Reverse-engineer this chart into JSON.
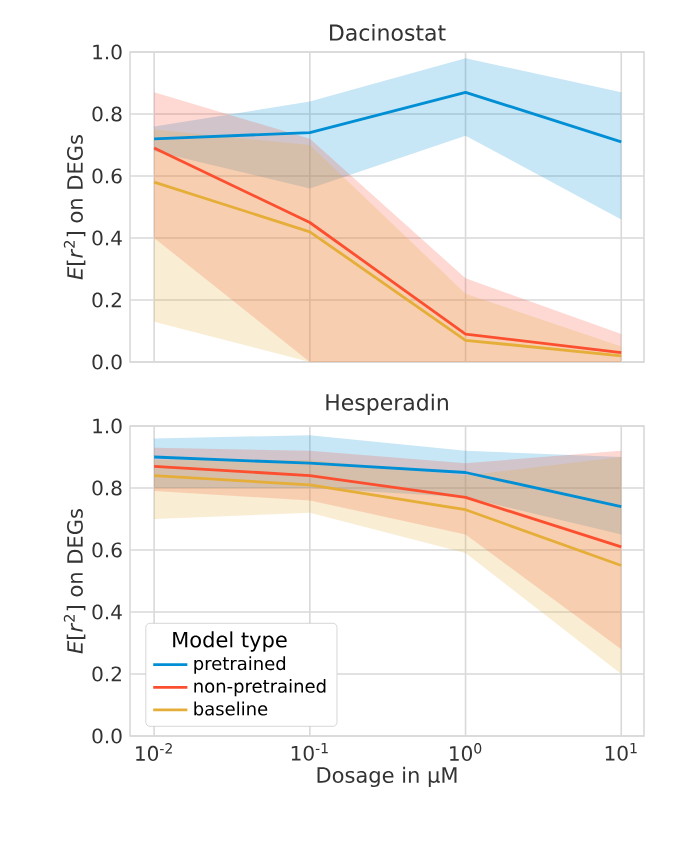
{
  "chart_data": [
    {
      "type": "line",
      "title": "Dacinostat",
      "ylabel": "*E*[*r*$^{2}$] on DEGs",
      "log": "x",
      "grid": true,
      "tick_labels": "y",
      "x": [
        0.01,
        0.1,
        1,
        10
      ],
      "xlim": [
        0.007,
        14
      ],
      "ylim": [
        0,
        1
      ],
      "xticks": [
        {
          "value": 0.01,
          "label": null
        },
        {
          "value": 0.1,
          "label": null
        },
        {
          "value": 1,
          "label": null
        },
        {
          "value": 10,
          "label": null
        }
      ],
      "yticks": [
        {
          "value": 0,
          "label": "0.0"
        },
        {
          "value": 0.2,
          "label": "0.2"
        },
        {
          "value": 0.4,
          "label": "0.4"
        },
        {
          "value": 0.6,
          "label": "0.6"
        },
        {
          "value": 0.8,
          "label": "0.8"
        },
        {
          "value": 1,
          "label": "1.0"
        }
      ],
      "series": [
        {
          "color": "#008fd5",
          "values": [
            0.72,
            0.74,
            0.87,
            0.71
          ],
          "lower": [
            0.68,
            0.56,
            0.73,
            0.46
          ],
          "upper": [
            0.76,
            0.84,
            0.98,
            0.87
          ]
        },
        {
          "color": "#fc4f30",
          "values": [
            0.69,
            0.45,
            0.09,
            0.03
          ],
          "lower": [
            0.4,
            0.0,
            0.0,
            0.0
          ],
          "upper": [
            0.87,
            0.72,
            0.27,
            0.09
          ]
        },
        {
          "color": "#e5ae38",
          "values": [
            0.58,
            0.42,
            0.07,
            0.02
          ],
          "lower": [
            0.13,
            0.0,
            0.0,
            0.0
          ],
          "upper": [
            0.75,
            0.7,
            0.22,
            0.05
          ]
        }
      ]
    },
    {
      "type": "line",
      "title": "Hesperadin",
      "ylabel": "*E*[*r*$^{2}$] on DEGs",
      "xlabel": "Dosage in μM",
      "legend_title": "Model type",
      "legend": "bottom left",
      "log": "x",
      "grid": true,
      "x": [
        0.01,
        0.1,
        1,
        10
      ],
      "xlim": [
        0.007,
        14
      ],
      "ylim": [
        0,
        1
      ],
      "xticks": [
        {
          "value": 0.01,
          "label": "10$^{-2}$"
        },
        {
          "value": 0.1,
          "label": "10$^{-1}$"
        },
        {
          "value": 1,
          "label": "10$^{0}$"
        },
        {
          "value": 10,
          "label": "10$^{1}$"
        }
      ],
      "yticks": [
        {
          "value": 0,
          "label": "0.0"
        },
        {
          "value": 0.2,
          "label": "0.2"
        },
        {
          "value": 0.4,
          "label": "0.4"
        },
        {
          "value": 0.6,
          "label": "0.6"
        },
        {
          "value": 0.8,
          "label": "0.8"
        },
        {
          "value": 1,
          "label": "1.0"
        }
      ],
      "series": [
        {
          "name": "pretrained",
          "color": "#008fd5",
          "values": [
            0.9,
            0.88,
            0.85,
            0.74
          ],
          "lower": [
            0.8,
            0.8,
            0.77,
            0.65
          ],
          "upper": [
            0.96,
            0.97,
            0.92,
            0.9
          ]
        },
        {
          "name": "non-pretrained",
          "color": "#fc4f30",
          "values": [
            0.87,
            0.84,
            0.77,
            0.61
          ],
          "lower": [
            0.79,
            0.76,
            0.65,
            0.28
          ],
          "upper": [
            0.93,
            0.92,
            0.88,
            0.92
          ]
        },
        {
          "name": "baseline",
          "color": "#e5ae38",
          "values": [
            0.84,
            0.81,
            0.73,
            0.55
          ],
          "lower": [
            0.7,
            0.72,
            0.59,
            0.2
          ],
          "upper": [
            0.89,
            0.89,
            0.84,
            0.9
          ]
        }
      ]
    }
  ]
}
